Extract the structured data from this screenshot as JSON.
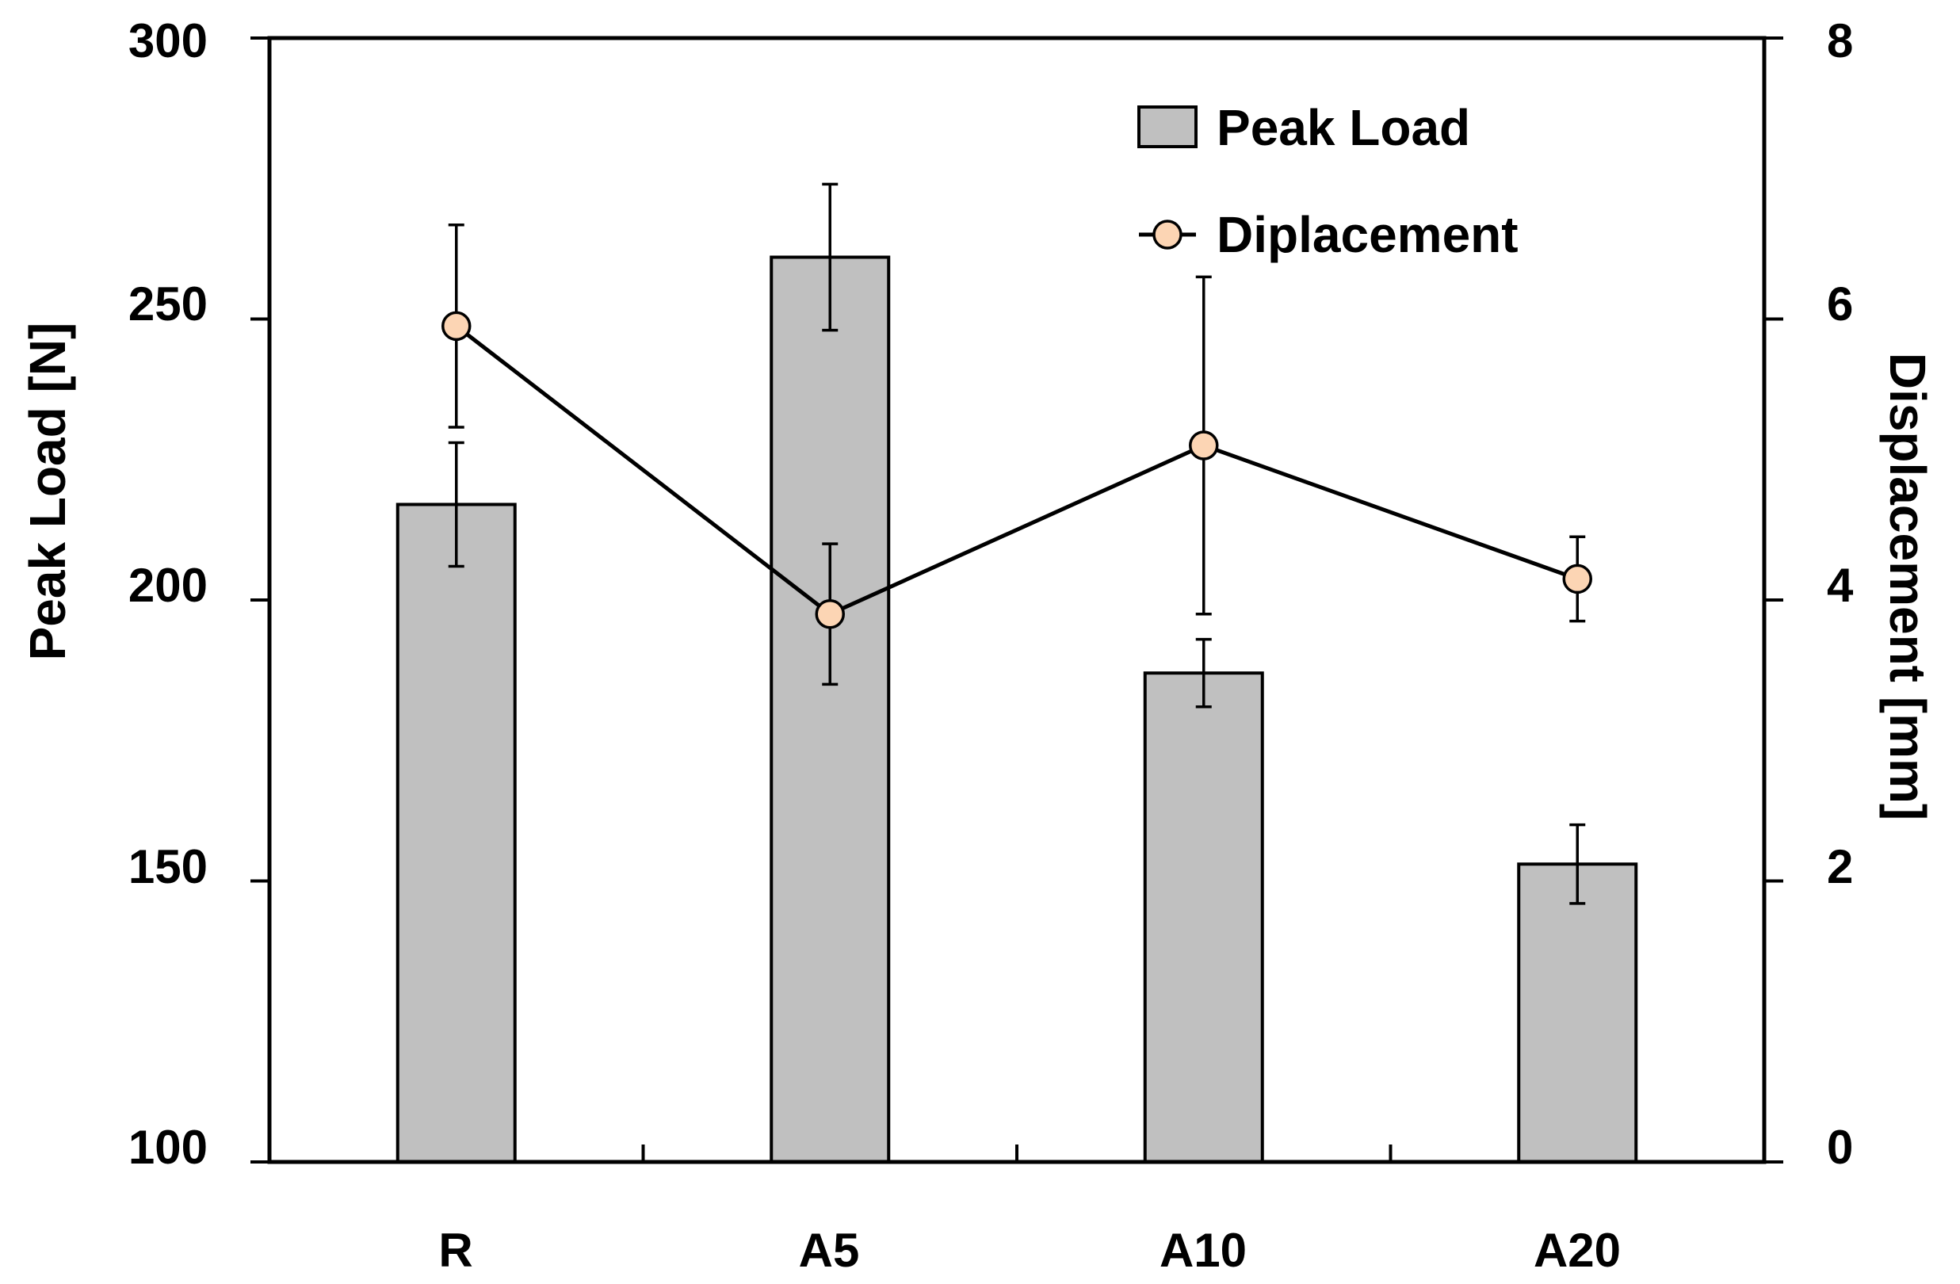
{
  "chart_data": {
    "type": "bar",
    "categories": [
      "R",
      "A5",
      "A10",
      "A20"
    ],
    "series": [
      {
        "name": "Peak Load",
        "kind": "bar",
        "axis": "left",
        "values": [
          217,
          261,
          187,
          153
        ],
        "errors": [
          11,
          13,
          6,
          7
        ]
      },
      {
        "name": "Diplacement",
        "kind": "line",
        "axis": "right",
        "values": [
          5.95,
          3.9,
          5.1,
          4.15
        ],
        "errors": [
          0.72,
          0.5,
          1.2,
          0.3
        ]
      }
    ],
    "ylabel": "Peak Load [N]",
    "y2label": "Displacement [mm]",
    "ylim": [
      100,
      300
    ],
    "y2lim": [
      0,
      8
    ],
    "yticks": [
      "100",
      "150",
      "200",
      "250",
      "300"
    ],
    "y2ticks": [
      "0",
      "2",
      "4",
      "6",
      "8"
    ],
    "legend_position": "top-right",
    "grid": false,
    "colors": {
      "bar_fill": "#c0c0c0",
      "bar_stroke": "#000000",
      "marker_fill": "#fcd5b4",
      "line": "#000000"
    }
  }
}
